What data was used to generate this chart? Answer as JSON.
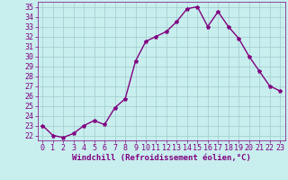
{
  "x": [
    0,
    1,
    2,
    3,
    4,
    5,
    6,
    7,
    8,
    9,
    10,
    11,
    12,
    13,
    14,
    15,
    16,
    17,
    18,
    19,
    20,
    21,
    22,
    23
  ],
  "y": [
    23.0,
    22.0,
    21.8,
    22.2,
    23.0,
    23.5,
    23.1,
    24.8,
    25.7,
    29.5,
    31.5,
    32.0,
    32.5,
    33.5,
    34.8,
    35.0,
    33.0,
    34.5,
    33.0,
    31.8,
    30.0,
    28.5,
    27.0,
    26.5
  ],
  "line_color": "#800080",
  "marker": "*",
  "bg_color": "#c8eeee",
  "grid_color": "#a0cccc",
  "xlabel": "Windchill (Refroidissement éolien,°C)",
  "xlim": [
    -0.5,
    23.5
  ],
  "ylim": [
    21.5,
    35.5
  ],
  "yticks": [
    22,
    23,
    24,
    25,
    26,
    27,
    28,
    29,
    30,
    31,
    32,
    33,
    34,
    35
  ],
  "xticks": [
    0,
    1,
    2,
    3,
    4,
    5,
    6,
    7,
    8,
    9,
    10,
    11,
    12,
    13,
    14,
    15,
    16,
    17,
    18,
    19,
    20,
    21,
    22,
    23
  ],
  "label_color": "#800080",
  "tick_color": "#800080",
  "font_size": 6,
  "xlabel_fontsize": 6.5,
  "linewidth": 1.0,
  "markersize": 3
}
